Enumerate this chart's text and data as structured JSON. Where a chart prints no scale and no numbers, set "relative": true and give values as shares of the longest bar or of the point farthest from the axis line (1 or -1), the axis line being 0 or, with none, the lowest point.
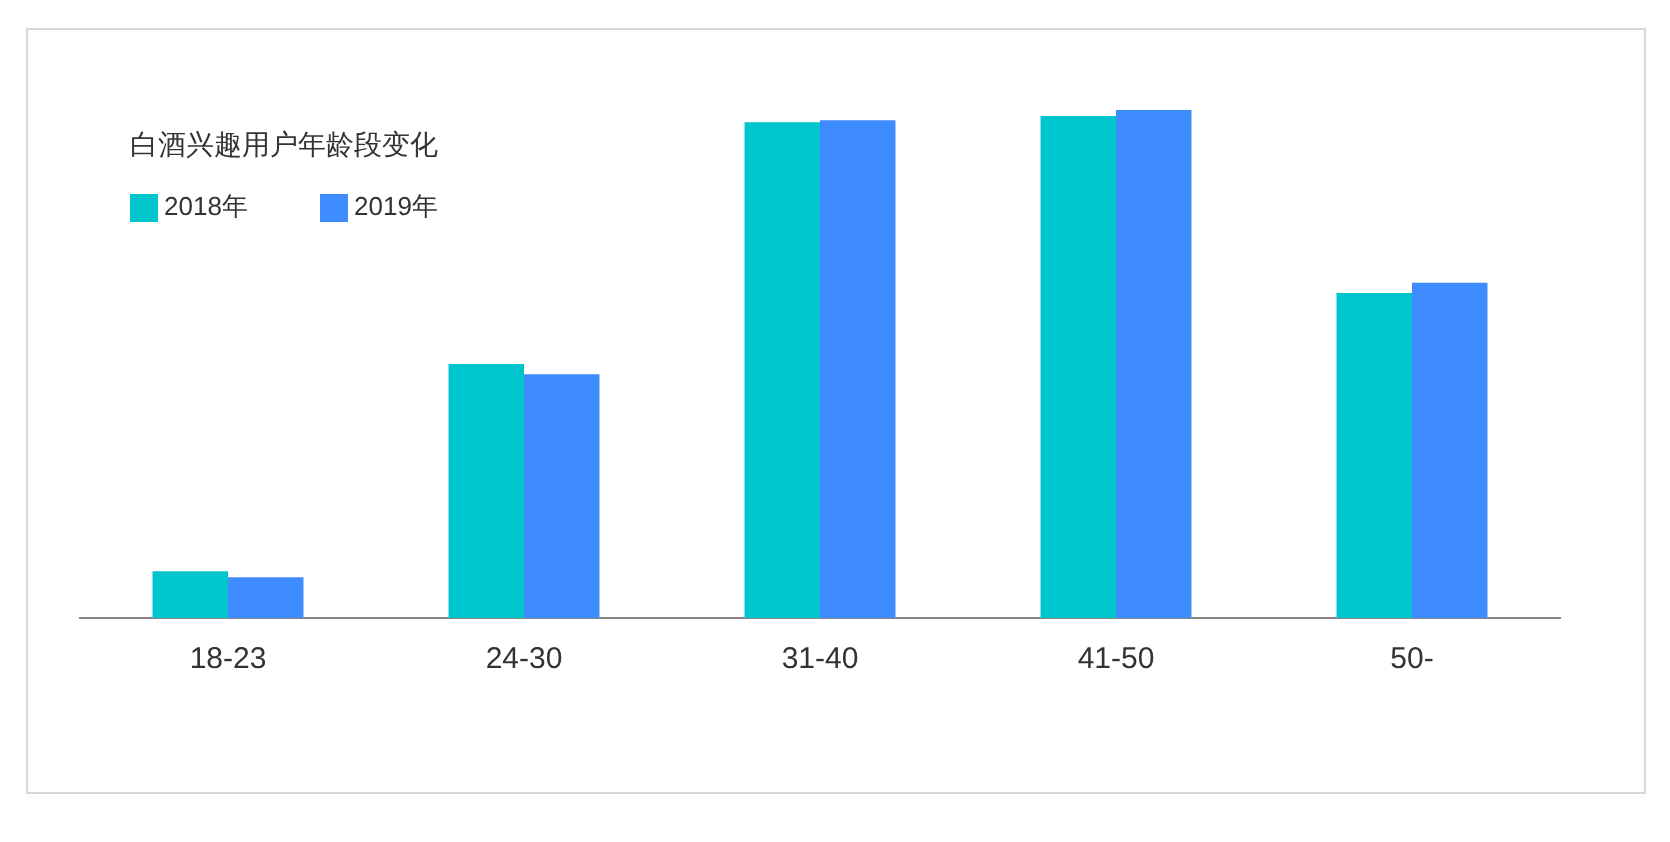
{
  "chart_data": {
    "type": "bar",
    "title": "白酒兴趣用户年龄段变化",
    "relative": true,
    "categories": [
      "18-23",
      "24-30",
      "31-40",
      "41-50",
      "50-"
    ],
    "series": [
      {
        "name": "2018年",
        "color": "#00c5cd",
        "values": [
          0.092,
          0.5,
          0.976,
          0.988,
          0.64
        ]
      },
      {
        "name": "2019年",
        "color": "#3f8cff",
        "values": [
          0.08,
          0.48,
          0.98,
          1,
          0.66
        ]
      }
    ],
    "legend": "top left",
    "grid": false
  }
}
